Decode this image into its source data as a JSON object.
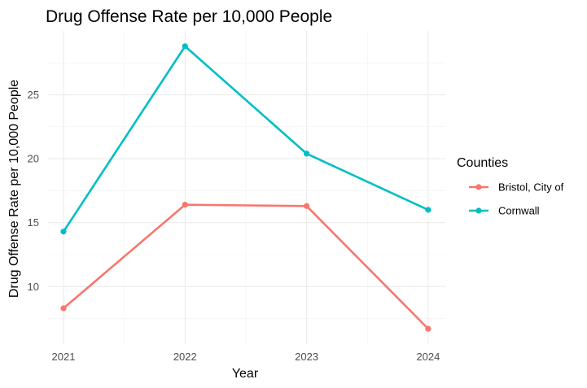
{
  "chart_data": {
    "type": "line",
    "title": "Drug Offense Rate per 10,000 People",
    "xlabel": "Year",
    "ylabel": "Drug Offense Rate per 10,000 People",
    "x": [
      "2021",
      "2022",
      "2023",
      "2024"
    ],
    "ylim": [
      5.5,
      30
    ],
    "yticks": [
      10,
      15,
      20,
      25
    ],
    "grid": true,
    "legend": {
      "title": "Counties",
      "position": "right"
    },
    "series": [
      {
        "name": "Bristol, City of",
        "color": "#f8766d",
        "values": [
          8.3,
          16.4,
          16.3,
          6.7
        ]
      },
      {
        "name": "Cornwall",
        "color": "#00bfc4",
        "values": [
          14.3,
          28.8,
          20.4,
          16.0
        ]
      }
    ]
  }
}
